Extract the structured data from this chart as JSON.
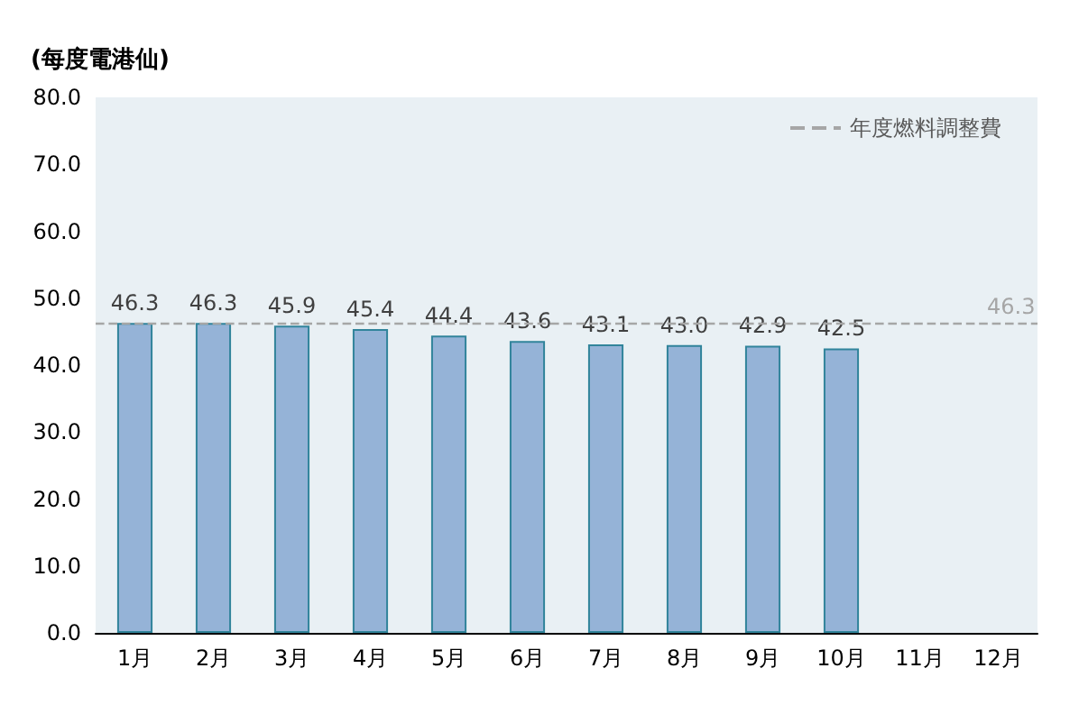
{
  "chart_data": {
    "type": "bar",
    "ylabel": "(每度電港仙)",
    "categories": [
      "1月",
      "2月",
      "3月",
      "4月",
      "5月",
      "6月",
      "7月",
      "8月",
      "9月",
      "10月",
      "11月",
      "12月"
    ],
    "values": [
      46.3,
      46.3,
      45.9,
      45.4,
      44.4,
      43.6,
      43.1,
      43.0,
      42.9,
      42.5,
      null,
      null
    ],
    "color": "#95b3d7",
    "ylim": [
      0,
      80
    ],
    "yticks": [
      {
        "value": 0,
        "label": "0.0"
      },
      {
        "value": 10,
        "label": "10.0"
      },
      {
        "value": 20,
        "label": "20.0"
      },
      {
        "value": 30,
        "label": "30.0"
      },
      {
        "value": 40,
        "label": "40.0"
      },
      {
        "value": 50,
        "label": "50.0"
      },
      {
        "value": 60,
        "label": "60.0"
      },
      {
        "value": 70,
        "label": "70.0"
      },
      {
        "value": 80,
        "label": "80.0"
      }
    ],
    "ref_lines": [
      {
        "axis": "y",
        "value": 46.3,
        "label": "46.3",
        "color": "#a6a6a6",
        "line_style": "dashed"
      }
    ],
    "annotations": [
      "年度燃料調整費"
    ],
    "legend": "top right",
    "value_labels": [
      "46.3",
      "46.3",
      "45.9",
      "45.4",
      "44.4",
      "43.6",
      "43.1",
      "43.0",
      "42.9",
      "42.5",
      null,
      null
    ],
    "grid": false
  }
}
